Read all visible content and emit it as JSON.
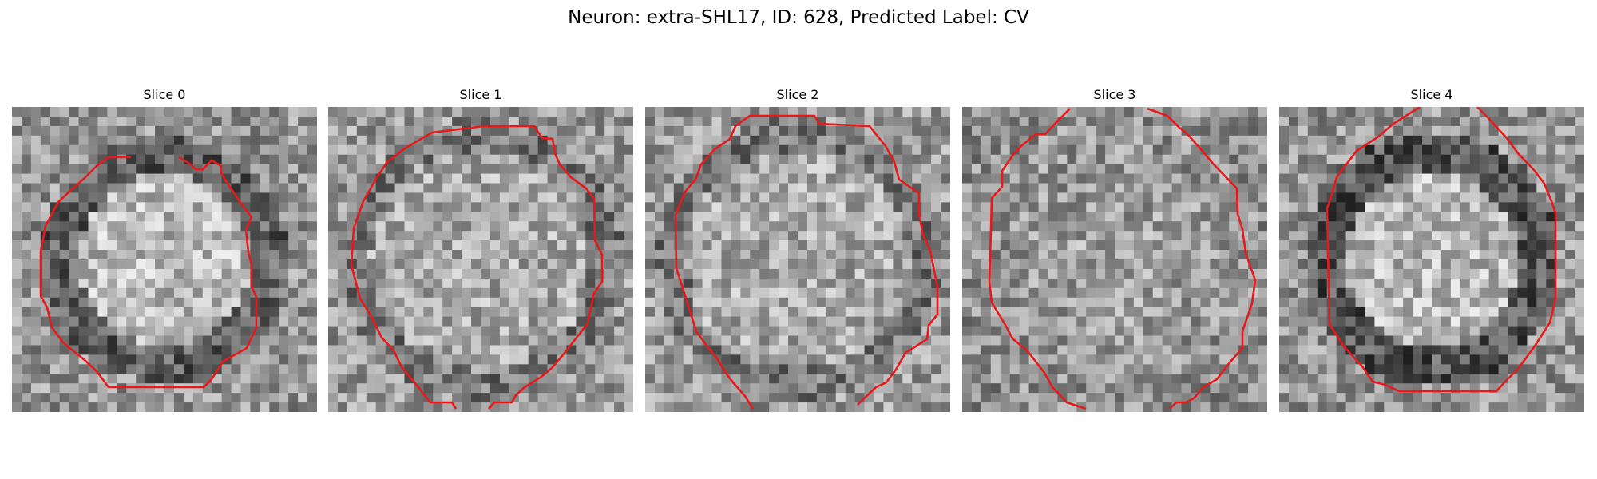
{
  "figure": {
    "title": "Neuron: extra-SHL17, ID: 628, Predicted Label: CV"
  },
  "panels": [
    {
      "title": "Slice 0",
      "seed": 11,
      "dark": "ring"
    },
    {
      "title": "Slice 1",
      "seed": 23,
      "dark": "ring-light"
    },
    {
      "title": "Slice 2",
      "seed": 37,
      "dark": "ring-light"
    },
    {
      "title": "Slice 3",
      "seed": 51,
      "dark": "flat"
    },
    {
      "title": "Slice 4",
      "seed": 67,
      "dark": "ring-strong"
    }
  ],
  "colors": {
    "contour": "#e8191b"
  }
}
